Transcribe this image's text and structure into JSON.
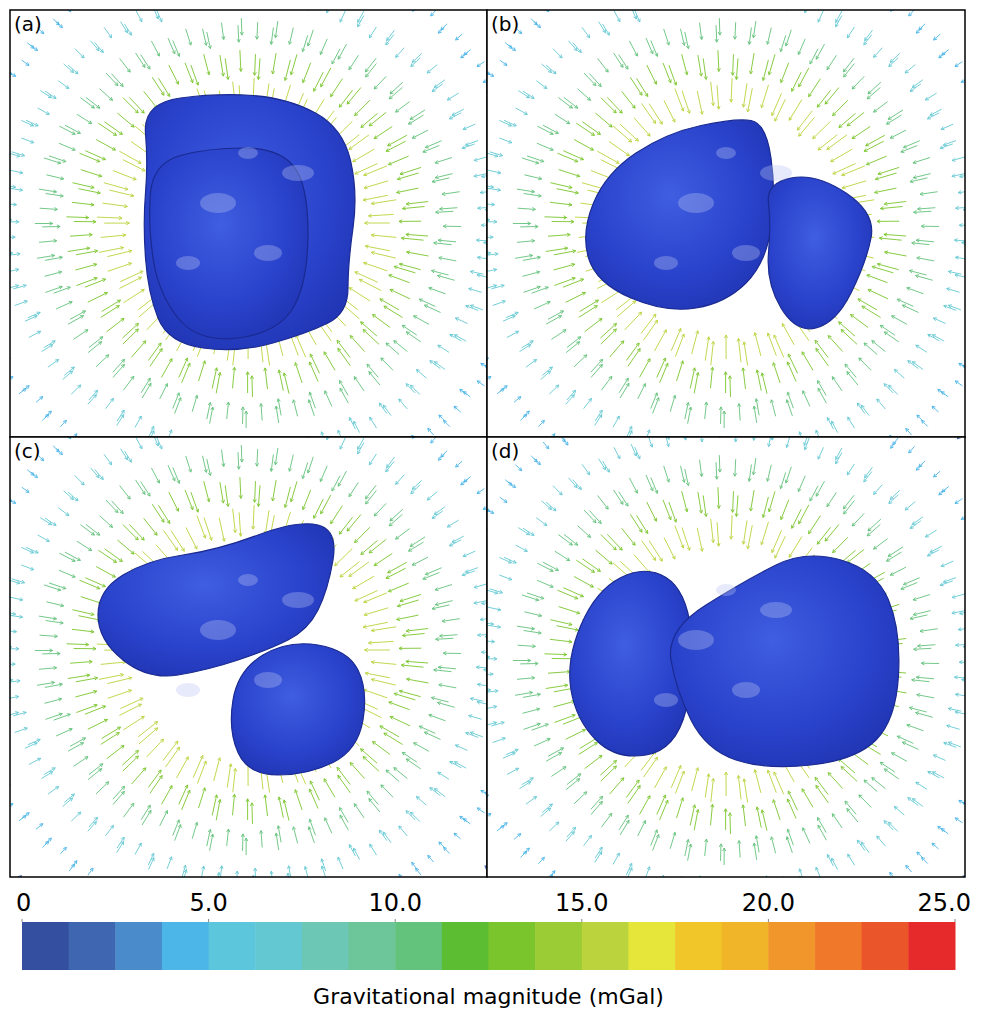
{
  "chart_data": {
    "type": "vector_field",
    "panels": [
      {
        "label": "(a)",
        "magnitudes": [
          15,
          13,
          10,
          7,
          4,
          2
        ]
      },
      {
        "label": "(b)",
        "magnitudes": [
          15,
          13,
          10,
          7,
          4,
          2
        ]
      },
      {
        "label": "(c)",
        "magnitudes": [
          15,
          13,
          10,
          7,
          4,
          2
        ]
      },
      {
        "label": "(d)",
        "magnitudes": [
          15,
          13,
          10,
          7,
          4,
          2
        ]
      }
    ],
    "colorbar": {
      "label": "Gravitational magnitude (mGal)",
      "range": [
        0,
        25
      ],
      "ticks": [
        0,
        {
          "value": 5,
          "label": "5.0"
        },
        {
          "value": 10,
          "label": "10.0"
        },
        {
          "value": 15,
          "label": "15.0"
        },
        {
          "value": 20,
          "label": "20.0"
        },
        {
          "value": 25,
          "label": "25.0"
        }
      ],
      "colors": [
        "#344f9f",
        "#3e66b1",
        "#4a8bcb",
        "#4db6e8",
        "#5cc6dd",
        "#64c8d3",
        "#6cc8b4",
        "#6dc59a",
        "#63c27c",
        "#5cbd32",
        "#7bc52c",
        "#9bcb35",
        "#bbd33c",
        "#e5e639",
        "#f1c629",
        "#f1b52a",
        "#f1962a",
        "#f0782b",
        "#eb552a",
        "#e62a2b"
      ]
    }
  }
}
